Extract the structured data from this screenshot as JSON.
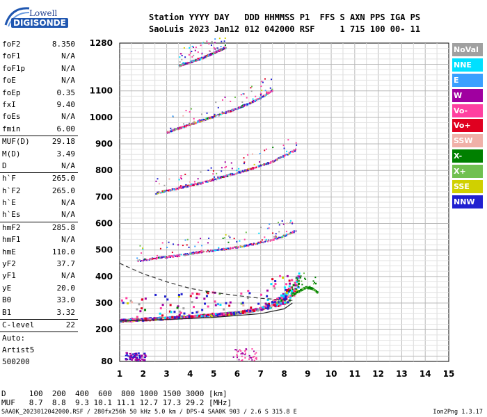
{
  "logo": {
    "line1": "Lowell",
    "line2": "DIGISONDE"
  },
  "header": {
    "row1": "Station YYYY DAY   DDD HHMMSS P1  FFS S AXN PPS IGA PS",
    "row2": "SaoLuis 2023 Jan12 012 042000 RSF     1 715 100 00- 11"
  },
  "params": [
    {
      "label": "foF2",
      "value": "8.350"
    },
    {
      "label": "foF1",
      "value": "N/A"
    },
    {
      "label": "foF1p",
      "value": "N/A"
    },
    {
      "label": "foE",
      "value": "N/A"
    },
    {
      "label": "foEp",
      "value": "0.35"
    },
    {
      "label": "fxI",
      "value": "9.40"
    },
    {
      "label": "foEs",
      "value": "N/A"
    },
    {
      "label": "fmin",
      "value": "6.00"
    },
    {
      "label": "MUF(D)",
      "value": "29.18"
    },
    {
      "label": "M(D)",
      "value": "3.49"
    },
    {
      "label": "D",
      "value": "N/A"
    },
    {
      "label": "h`F",
      "value": "265.0"
    },
    {
      "label": "h`F2",
      "value": "265.0"
    },
    {
      "label": "h`E",
      "value": "N/A"
    },
    {
      "label": "h`Es",
      "value": "N/A"
    },
    {
      "label": "hmF2",
      "value": "285.8"
    },
    {
      "label": "hmF1",
      "value": "N/A"
    },
    {
      "label": "hmE",
      "value": "110.0"
    },
    {
      "label": "yF2",
      "value": "37.7"
    },
    {
      "label": "yF1",
      "value": "N/A"
    },
    {
      "label": "yE",
      "value": "20.0"
    },
    {
      "label": "B0",
      "value": "33.0"
    },
    {
      "label": "B1",
      "value": "3.32"
    },
    {
      "label": "C-level",
      "value": "22"
    }
  ],
  "auto": [
    "Auto:",
    "Artist5",
    "500200"
  ],
  "legend": [
    {
      "label": "NoVal",
      "color": "#a0a0a0"
    },
    {
      "label": "NNE",
      "color": "#00e0ff"
    },
    {
      "label": "E",
      "color": "#3aa0ff"
    },
    {
      "label": "W",
      "color": "#a000a0"
    },
    {
      "label": "Vo-",
      "color": "#ff40a0"
    },
    {
      "label": "Vo+",
      "color": "#e00020"
    },
    {
      "label": "SSW",
      "color": "#f0b0a8"
    },
    {
      "label": "X-",
      "color": "#008000"
    },
    {
      "label": "X+",
      "color": "#70c050"
    },
    {
      "label": "SSE",
      "color": "#d0d000"
    },
    {
      "label": "NNW",
      "color": "#2020d0"
    }
  ],
  "footer": {
    "d_row": "D     100  200  400  600  800 1000 1500 3000 [km]",
    "muf_row": "MUF   8.7  8.8  9.3 10.1 11.1 12.7 17.3 29.2 [MHz]",
    "file": "SAA0K_2023012042000.RSF / 280fx256h 50 kHz 5.0 km / DPS-4 SAA0K 903 / 2.6 S 315.8 E",
    "version": "Ion2Png 1.3.17"
  },
  "chart_data": {
    "type": "scatter",
    "title": "",
    "xlabel": "",
    "ylabel": "",
    "xlim": [
      1,
      15
    ],
    "ylim": [
      80,
      1280
    ],
    "x_ticks": [
      1,
      2,
      3,
      4,
      5,
      6,
      7,
      8,
      9,
      10,
      11,
      12,
      13,
      14,
      15
    ],
    "y_ticks": [
      80,
      200,
      300,
      400,
      500,
      600,
      700,
      800,
      900,
      1000,
      1100,
      1280
    ],
    "grid": true,
    "traces": [
      {
        "name": "O-trace 1st hop",
        "x": [
          1.0,
          2.0,
          3.0,
          4.0,
          5.0,
          6.0,
          7.0,
          7.5,
          8.0,
          8.3,
          8.6
        ],
        "y": [
          235,
          240,
          245,
          250,
          257,
          265,
          280,
          295,
          312,
          335,
          380
        ]
      },
      {
        "name": "2nd hop",
        "x": [
          1.7,
          2.5,
          3.5,
          4.5,
          5.5,
          6.5,
          7.5,
          8.0,
          8.5
        ],
        "y": [
          460,
          470,
          480,
          495,
          505,
          520,
          540,
          555,
          575
        ]
      },
      {
        "name": "3rd hop",
        "x": [
          2.5,
          3.5,
          4.5,
          5.5,
          6.5,
          7.5,
          8.5
        ],
        "y": [
          715,
          735,
          755,
          780,
          805,
          835,
          880
        ]
      },
      {
        "name": "4th hop",
        "x": [
          3.0,
          4.0,
          5.0,
          6.0,
          7.0,
          7.5
        ],
        "y": [
          945,
          975,
          1005,
          1035,
          1075,
          1105
        ]
      },
      {
        "name": "5th hop",
        "x": [
          3.5,
          4.5,
          5.5
        ],
        "y": [
          1195,
          1225,
          1265
        ]
      },
      {
        "name": "X-trace",
        "x": [
          8.3,
          8.6,
          8.9,
          9.2,
          9.4
        ],
        "y": [
          330,
          345,
          360,
          355,
          340
        ]
      }
    ],
    "model_profile_dashed": {
      "x": [
        1.0,
        2.0,
        3.0,
        4.0,
        5.0,
        6.0,
        7.0,
        8.0,
        8.35
      ],
      "y": [
        450,
        410,
        380,
        355,
        340,
        328,
        318,
        312,
        310
      ]
    },
    "model_profile_solid": {
      "x": [
        1.0,
        3.0,
        5.0,
        7.0,
        8.0,
        8.35
      ],
      "y": [
        232,
        238,
        246,
        260,
        278,
        300
      ]
    }
  }
}
